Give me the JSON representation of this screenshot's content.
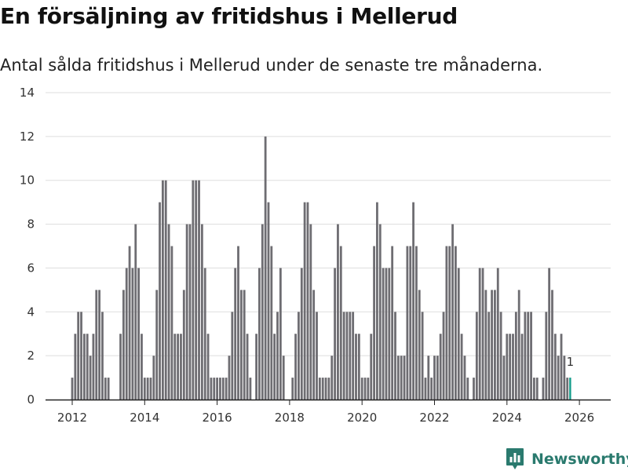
{
  "title": "En försäljning av fritidshus i Mellerud",
  "subtitle": "Antal sålda fritidshus i Mellerud under de senaste tre månaderna.",
  "brand": {
    "name": "Newsworthy",
    "color": "#2a7a6e"
  },
  "colors": {
    "bar": "#6e6d72",
    "highlight": "#139c8a",
    "grid": "#dddddd",
    "axis": "#222222"
  },
  "chart_data": {
    "type": "bar",
    "title": "En försäljning av fritidshus i Mellerud",
    "subtitle": "Antal sålda fritidshus i Mellerud under de senaste tre månaderna.",
    "xlabel": "",
    "ylabel": "",
    "ylim": [
      0,
      14
    ],
    "yticks": [
      0,
      2,
      4,
      6,
      8,
      10,
      12,
      14
    ],
    "xticks": [
      {
        "label": "2012",
        "year": 2012
      },
      {
        "label": "2014",
        "year": 2014
      },
      {
        "label": "2016",
        "year": 2016
      },
      {
        "label": "2018",
        "year": 2018
      },
      {
        "label": "2020",
        "year": 2020
      },
      {
        "label": "2022",
        "year": 2022
      },
      {
        "label": "2024",
        "year": 2024
      },
      {
        "label": "2026",
        "year": 2026
      }
    ],
    "start": "2012-01",
    "frequency": "monthly",
    "grid": true,
    "highlight_label": "1",
    "values": [
      1,
      3,
      4,
      4,
      3,
      3,
      2,
      3,
      5,
      5,
      4,
      1,
      1,
      0,
      0,
      0,
      3,
      5,
      6,
      7,
      6,
      8,
      6,
      3,
      1,
      1,
      1,
      2,
      5,
      9,
      10,
      10,
      8,
      7,
      3,
      3,
      3,
      5,
      8,
      8,
      10,
      10,
      10,
      8,
      6,
      3,
      1,
      1,
      1,
      1,
      1,
      1,
      2,
      4,
      6,
      7,
      5,
      5,
      3,
      1,
      0,
      3,
      6,
      8,
      12,
      9,
      7,
      3,
      4,
      6,
      2,
      0,
      0,
      1,
      3,
      4,
      6,
      9,
      9,
      8,
      5,
      4,
      1,
      1,
      1,
      1,
      2,
      6,
      8,
      7,
      4,
      4,
      4,
      4,
      3,
      3,
      1,
      1,
      1,
      3,
      7,
      9,
      8,
      6,
      6,
      6,
      7,
      4,
      2,
      2,
      2,
      7,
      7,
      9,
      7,
      5,
      4,
      1,
      2,
      1,
      2,
      2,
      3,
      4,
      7,
      7,
      8,
      7,
      6,
      3,
      2,
      1,
      0,
      1,
      4,
      6,
      6,
      5,
      4,
      5,
      5,
      6,
      4,
      2,
      3,
      3,
      3,
      4,
      5,
      3,
      4,
      4,
      4,
      1,
      1,
      0,
      1,
      4,
      6,
      5,
      3,
      2,
      3,
      2,
      1,
      1
    ]
  }
}
